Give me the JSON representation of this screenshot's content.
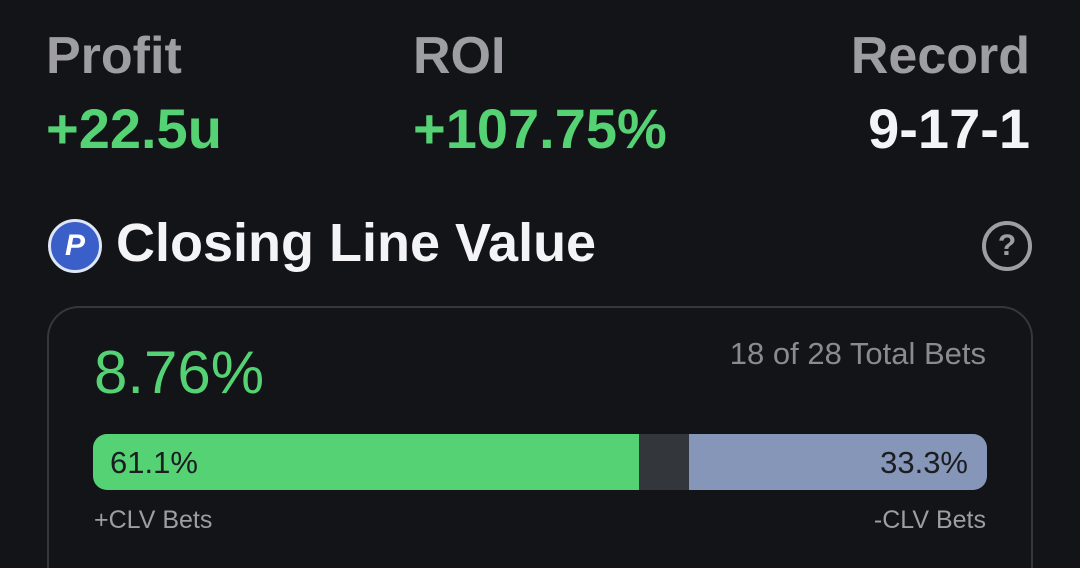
{
  "stats": [
    {
      "label": "Profit",
      "value": "+22.5u"
    },
    {
      "label": "ROI",
      "value": "+107.75%"
    },
    {
      "label": "Record",
      "value": "9-17-1"
    }
  ],
  "section": {
    "title": "Closing Line Value",
    "icon": "P",
    "help": "?"
  },
  "clv": {
    "value": "8.76%",
    "count": "18 of 28 Total Bets",
    "positive": {
      "value": 61.1,
      "value_label": "61.1%",
      "label": "+CLV Bets",
      "color": "#55d273"
    },
    "negative": {
      "value": 33.3,
      "value_label": "33.3%",
      "label": "-CLV Bets",
      "color": "#8596b8"
    }
  }
}
